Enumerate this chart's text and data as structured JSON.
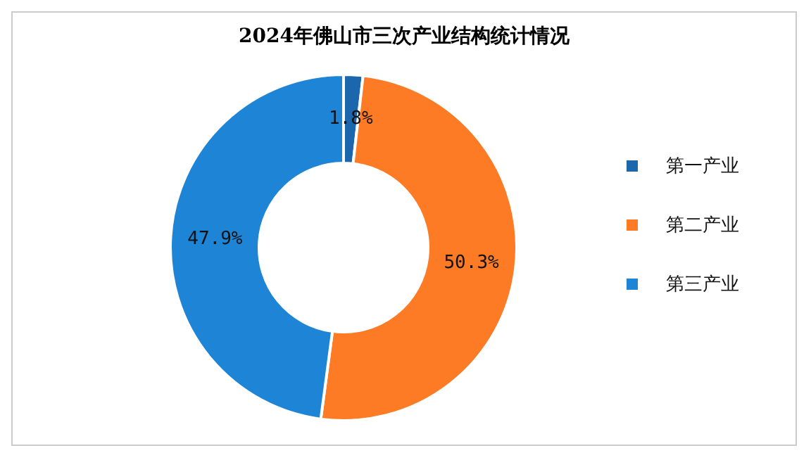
{
  "chart_data": {
    "type": "donut",
    "title": "2024年佛山市三次产业结构统计情况",
    "categories": [
      "第一产业",
      "第二产业",
      "第三产业"
    ],
    "values": [
      1.8,
      50.3,
      47.9
    ],
    "value_labels": [
      "1.8%",
      "50.3%",
      "47.9%"
    ],
    "colors": [
      "#1b66ad",
      "#fd7b25",
      "#1d84d6"
    ],
    "legend": "right"
  }
}
